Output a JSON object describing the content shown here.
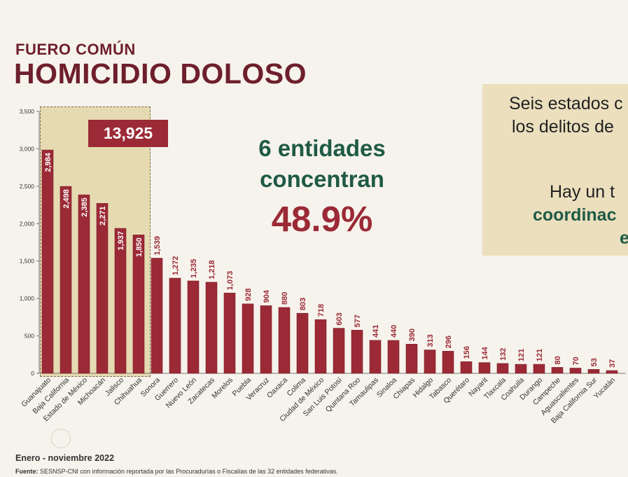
{
  "header": {
    "subtitle": "FUERO COMÚN",
    "title": "HOMICIDIO DOLOSO"
  },
  "highlight": {
    "total": "13,925"
  },
  "headline": {
    "line1": "6 entidades",
    "line2": "concentran",
    "percent": "48.9%"
  },
  "side_panel": {
    "line1": "Seis estados c",
    "line2": "los delitos de",
    "line3": "Hay un t",
    "line4": "coordinac",
    "line5": "e"
  },
  "footer": {
    "period": "Enero - noviembre 2022",
    "source_label": "Fuente:",
    "source_text": " SESNSP-CNI con información reportada por las Procuradurías o Fiscalías de las 32 entidades federativas."
  },
  "colors": {
    "bar": "#9b2a36",
    "bar_edge": "#7d1f2a",
    "highlight_bg": "#e6dab2",
    "green": "#1f5a45",
    "maroon": "#6e1f2c"
  },
  "chart_data": {
    "type": "bar",
    "title": "HOMICIDIO DOLOSO",
    "xlabel": "",
    "ylabel": "",
    "ylim": [
      0,
      3500
    ],
    "yticks": [
      0,
      500,
      1000,
      1500,
      2000,
      2500,
      3000,
      3500
    ],
    "ytick_labels": [
      "0",
      "500",
      "1,000",
      "1,500",
      "2,000",
      "2,500",
      "3,000",
      "3,500"
    ],
    "categories": [
      "Guanajuato",
      "Baja California",
      "Estado de México",
      "Michoacán",
      "Jalisco",
      "Chihuahua",
      "Sonora",
      "Guerrero",
      "Nuevo León",
      "Zacatecas",
      "Morelos",
      "Puebla",
      "Veracruz",
      "Oaxaca",
      "Colima",
      "Ciudad de México",
      "San Luis Potosí",
      "Quintana Roo",
      "Tamaulipas",
      "Sinaloa",
      "Chiapas",
      "Hidalgo",
      "Tabasco",
      "Querétaro",
      "Nayarit",
      "Tlaxcala",
      "Coahuila",
      "Durango",
      "Campeche",
      "Aguascalientes",
      "Baja California Sur",
      "Yucatán"
    ],
    "values": [
      2984,
      2498,
      2385,
      2271,
      1937,
      1850,
      1539,
      1272,
      1235,
      1218,
      1073,
      928,
      904,
      880,
      803,
      718,
      603,
      577,
      441,
      440,
      390,
      313,
      296,
      156,
      144,
      132,
      121,
      121,
      80,
      70,
      53,
      37
    ],
    "labels": [
      "2,984",
      "2,498",
      "2,385",
      "2,271",
      "1,937",
      "1,850",
      "1,539",
      "1,272",
      "1,235",
      "1,218",
      "1,073",
      "928",
      "904",
      "880",
      "803",
      "718",
      "603",
      "577",
      "441",
      "440",
      "390",
      "313",
      "296",
      "156",
      "144",
      "132",
      "121",
      "121",
      "80",
      "70",
      "53",
      "37"
    ],
    "highlighted_count": 6
  }
}
